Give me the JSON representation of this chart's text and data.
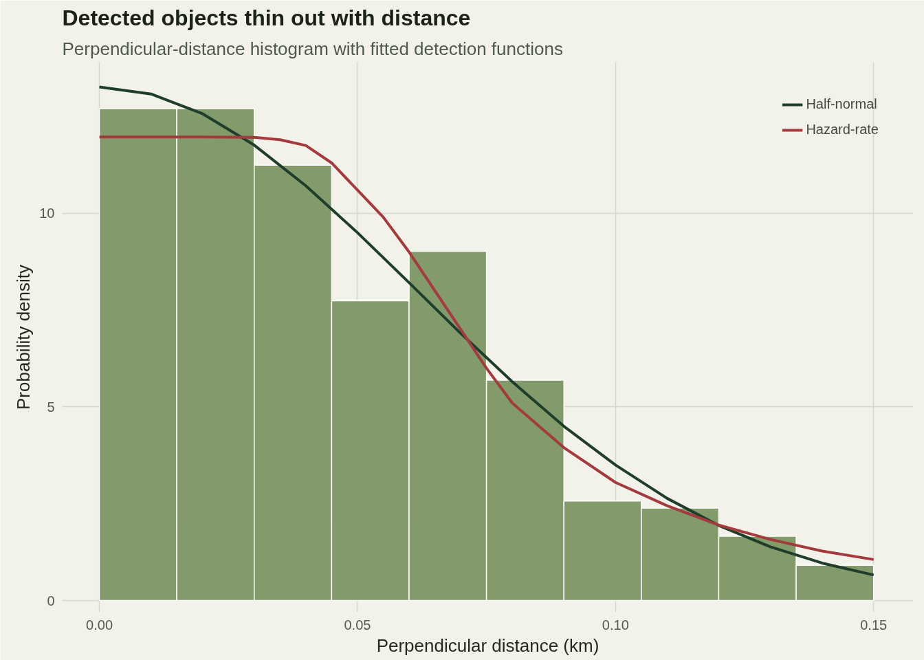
{
  "chart_data": {
    "type": "histogram",
    "title": "Detected objects thin out with distance",
    "subtitle": "Perpendicular-distance histogram with fitted detection functions",
    "xlabel": "Perpendicular distance (km)",
    "ylabel": "Probability density",
    "bins": [
      0,
      0.015,
      0.03,
      0.045,
      0.06,
      0.075,
      0.09,
      0.105,
      0.12,
      0.135,
      0.15
    ],
    "values": [
      12.7,
      12.7,
      11.24,
      7.74,
      9.02,
      5.69,
      2.57,
      2.39,
      1.66,
      0.91
    ],
    "color": "#839a6b",
    "series": [
      {
        "type": "line",
        "name": "Half-normal",
        "color": "#1f3d2b",
        "x": [
          0,
          0.01,
          0.02,
          0.03,
          0.04,
          0.05,
          0.06,
          0.07,
          0.08,
          0.09,
          0.1,
          0.11,
          0.12,
          0.13,
          0.14,
          0.15
        ],
        "values": [
          13.26,
          13.08,
          12.57,
          11.76,
          10.71,
          9.5,
          8.21,
          6.9,
          5.65,
          4.5,
          3.5,
          2.64,
          1.94,
          1.39,
          0.97,
          0.66
        ]
      },
      {
        "type": "line",
        "name": "Hazard-rate",
        "color": "#a33a3d",
        "x": [
          0,
          0.01,
          0.02,
          0.03,
          0.035,
          0.04,
          0.045,
          0.05,
          0.055,
          0.06,
          0.065,
          0.07,
          0.075,
          0.08,
          0.09,
          0.1,
          0.11,
          0.12,
          0.13,
          0.14,
          0.15
        ],
        "values": [
          11.97,
          11.97,
          11.97,
          11.96,
          11.9,
          11.75,
          11.3,
          10.6,
          9.9,
          9.0,
          8.0,
          7.0,
          6.0,
          5.1,
          3.95,
          3.05,
          2.45,
          1.95,
          1.58,
          1.28,
          1.06
        ]
      }
    ],
    "xlim": [
      -0.0072,
      0.1577
    ],
    "ylim": [
      -0.3,
      13.9
    ],
    "xticks": [
      {
        "value": 0,
        "label": "0.00"
      },
      0.05,
      {
        "value": 0.1,
        "label": "0.10"
      },
      0.15
    ],
    "yticks": [
      0,
      5,
      10
    ],
    "grid": true,
    "legend": "top right",
    "marker": "none",
    "line_style": "solid"
  }
}
